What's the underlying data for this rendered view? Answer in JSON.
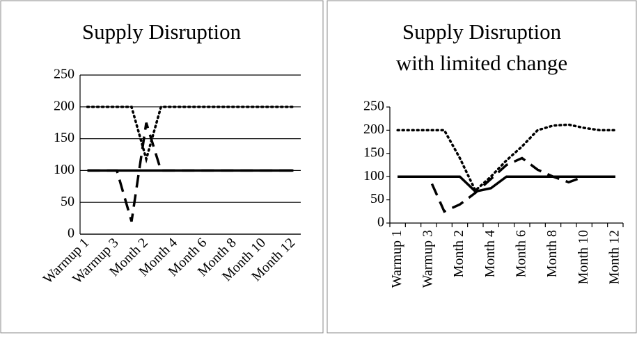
{
  "chart_data": [
    {
      "type": "line",
      "title": [
        "Supply Disruption"
      ],
      "categories": [
        "Warmup 1",
        null,
        "Warmup 3",
        null,
        "Month 2",
        null,
        "Month 4",
        null,
        "Month 6",
        null,
        "Month 8",
        null,
        "Month 10",
        null,
        "Month 12"
      ],
      "series": [
        {
          "color": "#000000",
          "style": "solid",
          "values": [
            100,
            100,
            100,
            100,
            100,
            100,
            100,
            100,
            100,
            100,
            100,
            100,
            100,
            100,
            100
          ]
        },
        {
          "color": "#000000",
          "style": "dotted",
          "values": [
            200,
            200,
            200,
            200,
            118,
            200,
            200,
            200,
            200,
            200,
            200,
            200,
            200,
            200,
            200
          ]
        },
        {
          "color": "#000000",
          "style": "dashed",
          "values": [
            100,
            100,
            100,
            20,
            175,
            100,
            100,
            100,
            100,
            100,
            100,
            100,
            100,
            100,
            100
          ]
        }
      ],
      "ylim": [
        0,
        250
      ],
      "yticks": [
        0,
        50,
        100,
        150,
        200,
        250
      ],
      "grid": true
    },
    {
      "type": "line",
      "title": [
        "Supply Disruption",
        "with limited change"
      ],
      "categories": [
        "Warmup 1",
        null,
        "Warmup 3",
        null,
        "Month 2",
        null,
        "Month 4",
        null,
        "Month 6",
        null,
        "Month 8",
        null,
        "Month 10",
        null,
        "Month 12"
      ],
      "series": [
        {
          "color": "#000000",
          "style": "solid",
          "values": [
            100,
            100,
            100,
            100,
            100,
            68,
            75,
            100,
            100,
            100,
            100,
            100,
            100,
            100,
            100
          ]
        },
        {
          "color": "#000000",
          "style": "dotted",
          "values": [
            200,
            200,
            200,
            200,
            140,
            70,
            100,
            135,
            165,
            200,
            210,
            212,
            205,
            200,
            200
          ]
        },
        {
          "color": "#000000",
          "style": "dashed",
          "values": [
            100,
            100,
            100,
            25,
            40,
            65,
            95,
            125,
            140,
            115,
            100,
            88,
            100,
            100,
            100
          ]
        }
      ],
      "ylim": [
        0,
        250
      ],
      "yticks": [
        0,
        50,
        100,
        150,
        200,
        250
      ],
      "grid": false
    }
  ]
}
